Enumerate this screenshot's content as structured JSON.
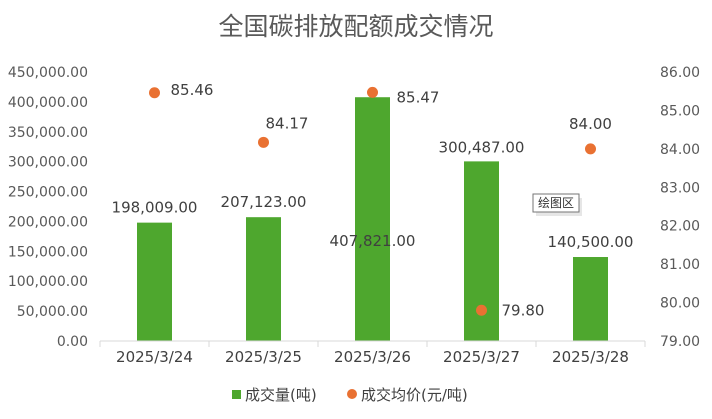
{
  "chart_data": {
    "type": "bar",
    "title": "全国碳排放配额成交情况",
    "categories": [
      "2025/3/24",
      "2025/3/25",
      "2025/3/26",
      "2025/3/27",
      "2025/3/28"
    ],
    "series": [
      {
        "name": "成交量(吨)",
        "type": "bar",
        "axis": "left",
        "color": "#4ea72e",
        "values": [
          198009,
          207123,
          407821,
          300487,
          140500
        ],
        "labels": [
          "198,009.00",
          "207,123.00",
          "407,821.00",
          "300,487.00",
          "140,500.00"
        ]
      },
      {
        "name": "成交均价(元/吨)",
        "type": "scatter",
        "axis": "right",
        "color": "#e97132",
        "values": [
          85.46,
          84.17,
          85.47,
          79.8,
          84.0
        ],
        "labels": [
          "85.46",
          "84.17",
          "85.47",
          "79.80",
          "84.00"
        ]
      }
    ],
    "y_left": {
      "min": 0,
      "max": 450000,
      "step": 50000,
      "tick_labels": [
        "0.00",
        "50,000.00",
        "100,000.00",
        "150,000.00",
        "200,000.00",
        "250,000.00",
        "300,000.00",
        "350,000.00",
        "400,000.00",
        "450,000.00"
      ]
    },
    "y_right": {
      "min": 79,
      "max": 86,
      "step": 1,
      "tick_labels": [
        "79.00",
        "80.00",
        "81.00",
        "82.00",
        "83.00",
        "84.00",
        "85.00",
        "86.00"
      ]
    },
    "grid": false,
    "legend_position": "bottom",
    "tooltip": "绘图区"
  }
}
